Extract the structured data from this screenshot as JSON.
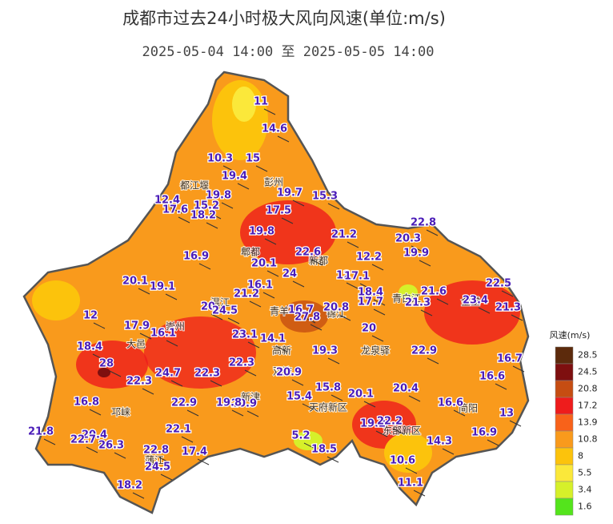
{
  "header": {
    "title": "成都市过去24小时极大风向风速(单位:m/s)",
    "subtitle": "2025-05-04 14:00 至 2025-05-05 14:00"
  },
  "legend": {
    "title": "风速(m/s)",
    "ticks": [
      28.5,
      24.5,
      20.8,
      17.2,
      13.9,
      10.8,
      8,
      5.5,
      3.4,
      1.6
    ],
    "colors": [
      "#5c2a0c",
      "#7e0f0f",
      "#c64d12",
      "#ee1c1c",
      "#f8621a",
      "#f99a1c",
      "#fcc30c",
      "#fbe83a",
      "#d6f02a",
      "#54e41c"
    ]
  },
  "stations": [
    11,
    14.6,
    10.3,
    15,
    19.4,
    19.8,
    19.7,
    15.3,
    12.4,
    15.2,
    17.6,
    18.2,
    17.5,
    22.8,
    21.2,
    19.8,
    20.3,
    22.6,
    19.9,
    16.9,
    12.2,
    20.1,
    24,
    12,
    17.1,
    20.1,
    19.1,
    16.1,
    21.2,
    22.5,
    18.4,
    21.6,
    17.7,
    21.3,
    23.4,
    21.3,
    20.8,
    16.7,
    12,
    20,
    24.5,
    27.8,
    17.9,
    16.1,
    20,
    23.1,
    14.1,
    18.4,
    19.3,
    22.9,
    16.7,
    28,
    22.3,
    20.9,
    22.3,
    24.7,
    22.3,
    16.6,
    15.8,
    20.4,
    20.1,
    15.4,
    16.8,
    22.9,
    20.9,
    19.8,
    16.6,
    13,
    19.2,
    22.2,
    22.1,
    21.8,
    16.9,
    20.4,
    22.7,
    14.3,
    5.2,
    26.3,
    22.8,
    17.4,
    18.5,
    10.6,
    24.5,
    11.1,
    18.2
  ],
  "districts": [
    "都江堰",
    "彭州",
    "郫都",
    "新都",
    "青白江",
    "金堂",
    "崇州",
    "大邑",
    "温江",
    "青羊",
    "锦江",
    "高新",
    "龙泉驿",
    "双流",
    "邛崃",
    "新津",
    "天府新区",
    "东部新区",
    "简阳",
    "蒲江"
  ]
}
